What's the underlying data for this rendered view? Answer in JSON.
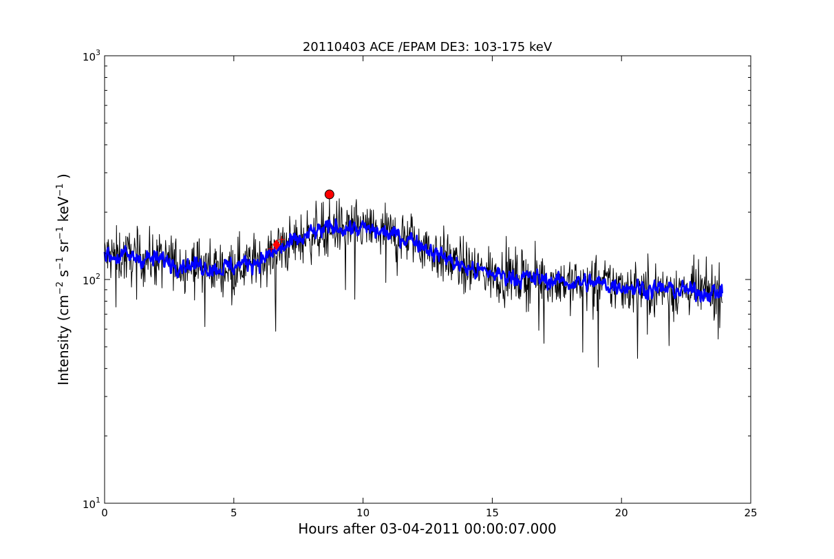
{
  "chart_data": {
    "type": "line",
    "title": "20110403 ACE /EPAM DE3: 103-175 keV",
    "xlabel": "Hours after 03-04-2011 00:00:07.000",
    "ylabel": {
      "base": "Intensity (cm",
      "sup1": "−2",
      "mid1": " s",
      "sup2": "−1",
      "mid2": " sr",
      "sup3": "−1",
      "mid3": " keV",
      "sup4": "−1",
      "end": " )"
    },
    "xlim": [
      0,
      25
    ],
    "ylim": [
      10,
      1000
    ],
    "yscale": "log",
    "x_ticks": [
      "0",
      "5",
      "10",
      "15",
      "20",
      "25"
    ],
    "y_ticks": [
      {
        "base": "10",
        "exp": "1"
      },
      {
        "base": "10",
        "exp": "2"
      },
      {
        "base": "10",
        "exp": "3"
      }
    ],
    "grid": false,
    "colors": {
      "raw": "#000000",
      "smoothed": "#0000ff",
      "marker": "#ff0000"
    },
    "series": [
      {
        "style": "black-line",
        "x_start": 0.0,
        "x_end": 23.9,
        "x_step": 0.02,
        "profile": [
          [
            0,
            128
          ],
          [
            1.5,
            125
          ],
          [
            3,
            118
          ],
          [
            4.5,
            112
          ],
          [
            6,
            122
          ],
          [
            7,
            140
          ],
          [
            8,
            160
          ],
          [
            9,
            172
          ],
          [
            10,
            168
          ],
          [
            11,
            160
          ],
          [
            12,
            150
          ],
          [
            13,
            128
          ],
          [
            14,
            112
          ],
          [
            15,
            106
          ],
          [
            16,
            102
          ],
          [
            17,
            100
          ],
          [
            18,
            97
          ],
          [
            19,
            96
          ],
          [
            20,
            94
          ],
          [
            21,
            91
          ],
          [
            22,
            90
          ],
          [
            23,
            88
          ],
          [
            23.9,
            87
          ]
        ],
        "noise_log10": 0.085
      },
      {
        "style": "blue-smoothed-line",
        "x_start": 0.0,
        "x_end": 23.9,
        "x_step": 0.02,
        "profile": [
          [
            0,
            128
          ],
          [
            1.5,
            125
          ],
          [
            3,
            118
          ],
          [
            4.5,
            112
          ],
          [
            6,
            122
          ],
          [
            7,
            140
          ],
          [
            8,
            160
          ],
          [
            9,
            172
          ],
          [
            10,
            168
          ],
          [
            11,
            160
          ],
          [
            12,
            150
          ],
          [
            13,
            128
          ],
          [
            14,
            112
          ],
          [
            15,
            106
          ],
          [
            16,
            102
          ],
          [
            17,
            100
          ],
          [
            18,
            97
          ],
          [
            19,
            96
          ],
          [
            20,
            94
          ],
          [
            21,
            91
          ],
          [
            22,
            90
          ],
          [
            23,
            88
          ],
          [
            23.9,
            87
          ]
        ],
        "noise_log10": 0.035
      }
    ],
    "markers": [
      {
        "kind": "circle",
        "x": 8.7,
        "y": 240
      },
      {
        "kind": "diamond",
        "x": 6.65,
        "y": 143
      },
      {
        "kind": "plus",
        "x": 6.85,
        "y": 151
      },
      {
        "kind": "plus",
        "x": 6.45,
        "y": 137
      }
    ]
  }
}
